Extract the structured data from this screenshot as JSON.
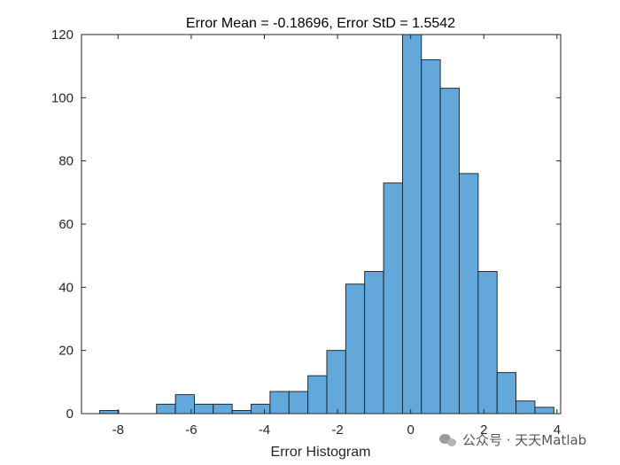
{
  "chart_data": {
    "type": "bar",
    "title": "Error Mean = -0.18696, Error StD = 1.5542",
    "xlabel": "Error Histogram",
    "ylabel": "",
    "xlim": [
      -9,
      4.1
    ],
    "ylim": [
      0,
      120
    ],
    "xticks": [
      -8,
      -6,
      -4,
      -2,
      0,
      2,
      4
    ],
    "yticks": [
      0,
      20,
      40,
      60,
      80,
      100,
      120
    ],
    "bin_width": 0.5172,
    "bins": [
      {
        "x0": -8.5,
        "value": 1
      },
      {
        "x0": -7.983,
        "value": 0
      },
      {
        "x0": -7.466,
        "value": 0
      },
      {
        "x0": -6.948,
        "value": 3
      },
      {
        "x0": -6.431,
        "value": 6
      },
      {
        "x0": -5.914,
        "value": 3
      },
      {
        "x0": -5.397,
        "value": 3
      },
      {
        "x0": -4.879,
        "value": 1
      },
      {
        "x0": -4.362,
        "value": 3
      },
      {
        "x0": -3.845,
        "value": 7
      },
      {
        "x0": -3.328,
        "value": 7
      },
      {
        "x0": -2.81,
        "value": 12
      },
      {
        "x0": -2.293,
        "value": 20
      },
      {
        "x0": -1.776,
        "value": 41
      },
      {
        "x0": -1.259,
        "value": 45
      },
      {
        "x0": -0.741,
        "value": 73
      },
      {
        "x0": -0.224,
        "value": 120
      },
      {
        "x0": 0.293,
        "value": 112
      },
      {
        "x0": 0.81,
        "value": 103
      },
      {
        "x0": 1.328,
        "value": 76
      },
      {
        "x0": 1.845,
        "value": 45
      },
      {
        "x0": 2.362,
        "value": 13
      },
      {
        "x0": 2.879,
        "value": 4
      },
      {
        "x0": 3.397,
        "value": 2
      }
    ],
    "grid": false,
    "bar_color": "#62a8da",
    "edge_color": "#1a1a1a"
  },
  "watermark": {
    "text": "公众号 · 天天Matlab",
    "icon": "wechat-icon"
  }
}
